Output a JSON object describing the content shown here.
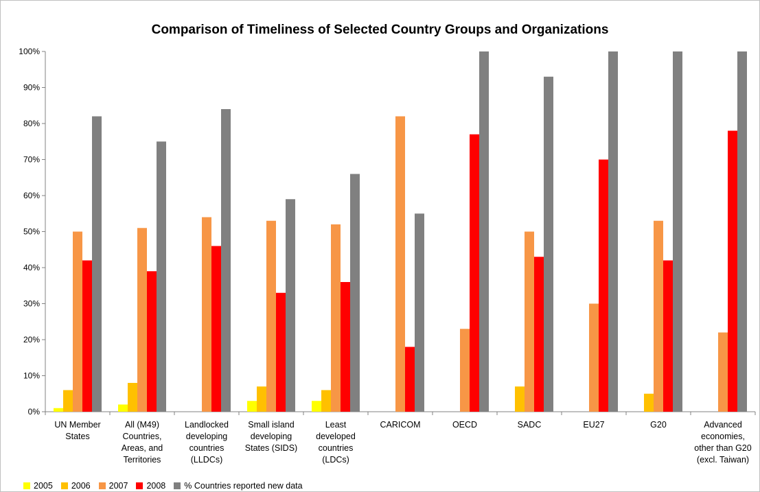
{
  "chart_data": {
    "type": "bar",
    "title": "Comparison of Timeliness of Selected Country Groups and Organizations",
    "xlabel": "",
    "ylabel": "",
    "ylim": [
      0,
      100
    ],
    "y_ticks": [
      "0%",
      "10%",
      "20%",
      "30%",
      "40%",
      "50%",
      "60%",
      "70%",
      "80%",
      "90%",
      "100%"
    ],
    "grid": false,
    "legend_position": "bottom-left",
    "categories": [
      [
        "UN Member",
        "States"
      ],
      [
        "All (M49)",
        "Countries,",
        "Areas, and",
        "Territories"
      ],
      [
        "Landlocked",
        "developing",
        "countries",
        "(LLDCs)"
      ],
      [
        "Small island",
        "developing",
        "States (SIDS)"
      ],
      [
        "Least",
        "developed",
        "countries",
        "(LDCs)"
      ],
      [
        "CARICOM"
      ],
      [
        "OECD"
      ],
      [
        "SADC"
      ],
      [
        "EU27"
      ],
      [
        "G20"
      ],
      [
        "Advanced",
        "economies,",
        "other than G20",
        "(excl. Taiwan)"
      ]
    ],
    "series": [
      {
        "name": "2005",
        "color": "#ffff00",
        "values": [
          1,
          2,
          0,
          3,
          3,
          0,
          0,
          0,
          0,
          0,
          0
        ]
      },
      {
        "name": "2006",
        "color": "#ffc000",
        "values": [
          6,
          8,
          0,
          7,
          6,
          0,
          0,
          7,
          0,
          5,
          0
        ]
      },
      {
        "name": "2007",
        "color": "#f79646",
        "values": [
          50,
          51,
          54,
          53,
          52,
          82,
          23,
          50,
          30,
          53,
          22
        ]
      },
      {
        "name": "2008",
        "color": "#ff0000",
        "values": [
          42,
          39,
          46,
          33,
          36,
          18,
          77,
          43,
          70,
          42,
          78
        ]
      },
      {
        "name": "% Countries reported new data",
        "color": "#808080",
        "values": [
          82,
          75,
          84,
          59,
          66,
          55,
          100,
          93,
          100,
          100,
          100
        ]
      }
    ]
  }
}
